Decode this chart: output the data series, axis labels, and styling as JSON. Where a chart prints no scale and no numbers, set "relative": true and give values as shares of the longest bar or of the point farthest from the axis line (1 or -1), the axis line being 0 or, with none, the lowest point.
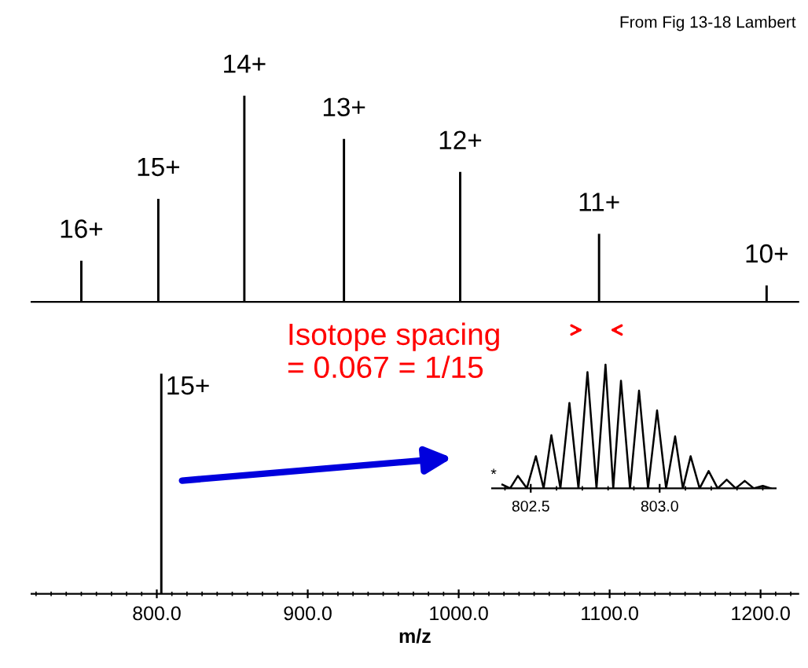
{
  "chart_data": [
    {
      "type": "bar",
      "title": "From Fig 13-18 Lambert",
      "relative": true,
      "xlim": [
        717,
        1225
      ],
      "tick_labels": false,
      "x": [
        750,
        801,
        858,
        924,
        1001,
        1093,
        1204
      ],
      "series": [
        {
          "color": "#000000",
          "values": [
            0.2,
            0.5,
            1,
            0.79,
            0.63,
            0.33,
            0.08
          ]
        }
      ],
      "annotations": [
        {
          "text": "16+",
          "x": 750,
          "y": 0.2
        },
        {
          "text": "15+",
          "x": 801,
          "y": 0.5
        },
        {
          "text": "14+",
          "x": 858,
          "y": 1
        },
        {
          "text": "13+",
          "x": 924,
          "y": 0.79
        },
        {
          "text": "12+",
          "x": 1001,
          "y": 0.63
        },
        {
          "text": "11+",
          "x": 1093,
          "y": 0.33
        },
        {
          "text": "10+",
          "x": 1204,
          "y": 0.08
        }
      ]
    },
    {
      "type": "bar",
      "relative": true,
      "xlim": [
        717,
        1225
      ],
      "xticks": [
        {
          "value": 800,
          "label": "800.0"
        },
        {
          "value": 900,
          "label": "900.0"
        },
        {
          "value": 1000,
          "label": "1000.0"
        },
        {
          "value": 1100,
          "label": "1100.0"
        },
        {
          "value": 1200,
          "label": "1200.0"
        }
      ],
      "xlabel": "m/z",
      "tick_labels": "x",
      "x": [
        803
      ],
      "series": [
        {
          "color": "#000000",
          "values": [
            1
          ]
        }
      ],
      "annotations": [
        {
          "text": "15+",
          "x": 803,
          "y": 1
        },
        "Isotope spacing\n= 0.067 = 1/15"
      ]
    },
    {
      "type": "line",
      "relative": true,
      "xlim": [
        802.35,
        803.45
      ],
      "xticks": [
        802.5,
        {
          "value": 803.0,
          "label": "803.0"
        }
      ],
      "tick_labels": "x",
      "x": [
        802.39,
        802.42,
        802.45,
        802.485,
        802.52,
        802.55,
        802.58,
        802.615,
        802.65,
        802.685,
        802.72,
        802.755,
        802.79,
        802.82,
        802.85,
        802.885,
        802.92,
        802.955,
        802.99,
        803.025,
        803.06,
        803.09,
        803.12,
        803.155,
        803.19,
        803.225,
        803.26,
        803.295,
        803.33,
        803.365,
        803.4,
        803.43
      ],
      "series": [
        {
          "color": "#000000",
          "values": [
            0.03,
            0,
            0.1,
            0,
            0.26,
            0,
            0.43,
            0,
            0.69,
            0,
            0.94,
            0,
            1,
            0,
            0.87,
            0,
            0.79,
            0,
            0.63,
            0,
            0.42,
            0,
            0.26,
            0,
            0.14,
            0,
            0.07,
            0,
            0.06,
            0,
            0.02,
            0
          ]
        }
      ],
      "annotations": [
        {
          "text": "*",
          "x": 802.39,
          "y": 0.03
        }
      ]
    }
  ]
}
